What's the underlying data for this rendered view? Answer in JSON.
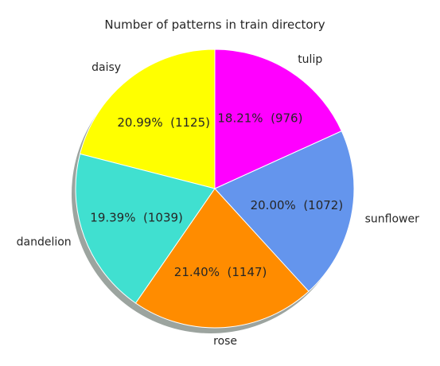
{
  "chart_data": {
    "type": "pie",
    "title": "Number of patterns in train directory",
    "start_angle_deg": 90,
    "direction": "counterclockwise",
    "shadow": true,
    "slices": [
      {
        "label": "daisy",
        "value": 1125,
        "pct_text": "20.99%  (1125)",
        "color": "#FFFF00"
      },
      {
        "label": "dandelion",
        "value": 1039,
        "pct_text": "19.39%  (1039)",
        "color": "#40E0D0"
      },
      {
        "label": "rose",
        "value": 1147,
        "pct_text": "21.40%  (1147)",
        "color": "#FF8C00"
      },
      {
        "label": "sunflower",
        "value": 1072,
        "pct_text": "20.00%  (1072)",
        "color": "#6495ED"
      },
      {
        "label": "tulip",
        "value": 976,
        "pct_text": "18.21%  (976)",
        "color": "#FF00FF"
      }
    ]
  }
}
